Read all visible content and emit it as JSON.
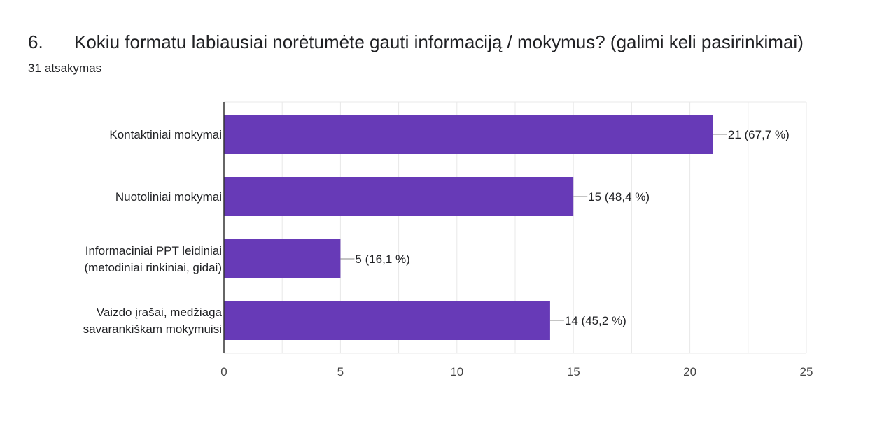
{
  "question": {
    "number": "6.",
    "text": "Kokiu formatu labiausiai norėtumėte gauti informaciją / mokymus? (galimi keli pasirinkimai)"
  },
  "responses": {
    "count": "31",
    "label": "atsakymas"
  },
  "colors": {
    "bar": "#673ab7",
    "grid": "#e8e8e8",
    "axis": "#333333",
    "text": "#202124",
    "tick_text": "#444444"
  },
  "chart_data": {
    "type": "bar",
    "orientation": "horizontal",
    "categories": [
      [
        "Kontaktiniai mokymai"
      ],
      [
        "Nuotoliniai mokymai"
      ],
      [
        "Informaciniai PPT leidiniai",
        "(metodiniai rinkiniai, gidai)"
      ],
      [
        "Vaizdo įrašai, medžiaga",
        "savarankiškam mokymuisi"
      ]
    ],
    "values": [
      21,
      15,
      5,
      14
    ],
    "value_labels": [
      "21 (67,7 %)",
      "15 (48,4 %)",
      "5 (16,1 %)",
      "14 (45,2 %)"
    ],
    "xlim": [
      0,
      25
    ],
    "x_ticks": [
      0,
      5,
      10,
      15,
      20,
      25
    ],
    "grid": true,
    "legend": "none"
  }
}
